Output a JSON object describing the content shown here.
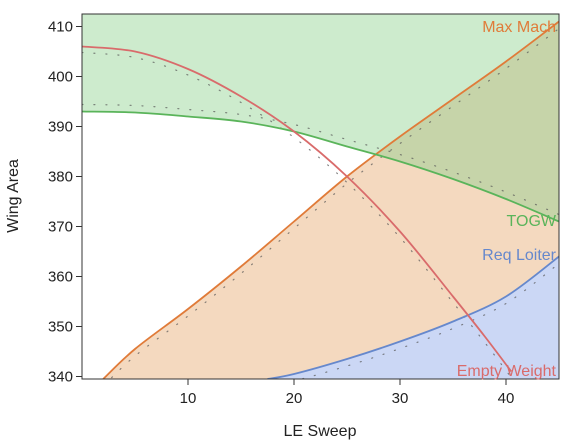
{
  "chart_data": {
    "type": "area",
    "title": "",
    "xlabel": "LE Sweep",
    "ylabel": "Wing Area",
    "xlim": [
      0,
      45
    ],
    "ylim": [
      339.5,
      412.5
    ],
    "xticks": [
      10,
      20,
      30,
      40
    ],
    "yticks": [
      340,
      350,
      360,
      370,
      380,
      390,
      400,
      410
    ],
    "grid": false,
    "legend": "none",
    "series": [
      {
        "name": "Max Mach",
        "label": "Max Mach",
        "color": "#e07b39",
        "fill": "#f4d9bf",
        "fill_side": "below",
        "x": [
          2,
          5,
          10,
          15,
          20,
          25,
          30,
          35,
          40,
          45
        ],
        "y": [
          339.5,
          345.5,
          353.5,
          362,
          371,
          380,
          388,
          395.5,
          403,
          411
        ]
      },
      {
        "name": "TOGW",
        "label": "TOGW",
        "color": "#5ab45a",
        "fill": "#cdebcd",
        "fill_side": "above",
        "x": [
          0,
          5,
          10,
          15,
          20,
          25,
          30,
          35,
          40,
          45
        ],
        "y": [
          393,
          392.8,
          392,
          391,
          389,
          386,
          383,
          379.5,
          375.5,
          371
        ]
      },
      {
        "name": "Req Loiter",
        "label": "Req Loiter",
        "color": "#6688cc",
        "fill": "#cbd7f5",
        "fill_side": "below",
        "x": [
          17.5,
          20,
          25,
          30,
          35,
          40,
          45
        ],
        "y": [
          339.5,
          340.5,
          343.5,
          347,
          351,
          356,
          364
        ]
      },
      {
        "name": "Empty Weight",
        "label": "Empty Weight",
        "color": "#d96b6b",
        "fill": "",
        "fill_side": "none",
        "x": [
          0,
          5,
          10,
          15,
          20,
          25,
          30,
          35,
          38,
          40.5
        ],
        "y": [
          406,
          405,
          401.5,
          396,
          389,
          380,
          369,
          356,
          348,
          341
        ]
      }
    ],
    "overlap_fill": "#c6d4a9"
  }
}
